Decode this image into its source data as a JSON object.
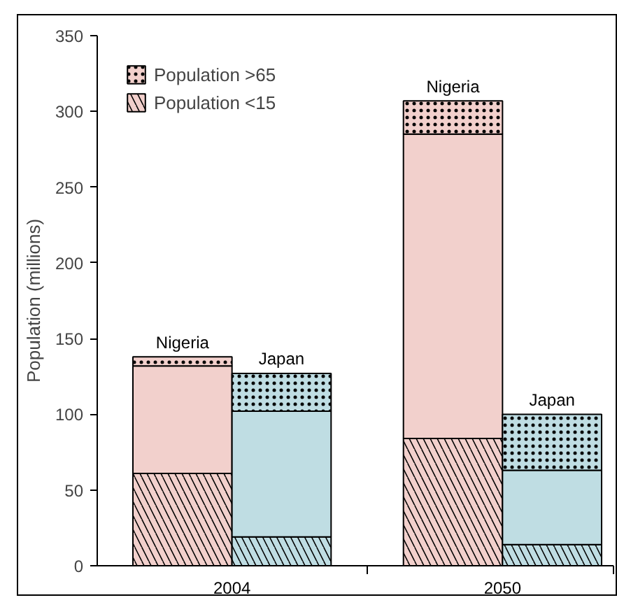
{
  "chart_data": {
    "type": "bar",
    "stacked": true,
    "ylabel": "Population (millions)",
    "categories": [
      "Nigeria",
      "Japan",
      "Nigeria",
      "Japan"
    ],
    "annotations": [
      "2004",
      "2050"
    ],
    "series": [
      {
        "name": "Population <15",
        "colors": [
          "#f2d0cc",
          "#bfdde3",
          "#f2d0cc",
          "#bfdde3"
        ],
        "values": [
          61,
          19,
          84,
          14
        ]
      },
      {
        "colors": [
          "#f2d0cc",
          "#bfdde3",
          "#f2d0cc",
          "#bfdde3"
        ],
        "values": [
          71,
          83,
          201,
          49
        ]
      },
      {
        "name": "Population >65",
        "colors": [
          "#f2d0cc",
          "#bfdde3",
          "#f2d0cc",
          "#bfdde3"
        ],
        "values": [
          6,
          25,
          22,
          37
        ]
      }
    ],
    "ylim": [
      0,
      350
    ],
    "yticks": [
      0,
      50,
      100,
      150,
      200,
      250,
      300,
      350
    ],
    "grid": false,
    "legend": "top left"
  }
}
